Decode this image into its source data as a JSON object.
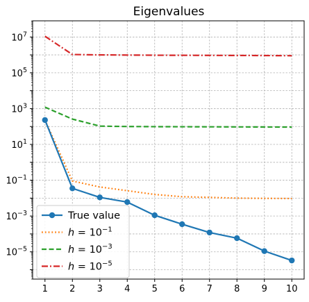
{
  "chart_data": {
    "type": "line",
    "title": "Eigenvalues",
    "xlabel": "",
    "ylabel": "",
    "x": [
      1,
      2,
      3,
      4,
      5,
      6,
      7,
      8,
      9,
      10
    ],
    "xlim": [
      0.55,
      10.45
    ],
    "ylim": [
      3e-07,
      80000000.0
    ],
    "yscale": "log",
    "grid": true,
    "legend_position": "lower-left",
    "x_ticks": [
      "1",
      "2",
      "3",
      "4",
      "5",
      "6",
      "7",
      "8",
      "9",
      "10"
    ],
    "y_ticks": [
      {
        "value": 1e-05,
        "base": "10",
        "exp": "−5"
      },
      {
        "value": 0.001,
        "base": "10",
        "exp": "−3"
      },
      {
        "value": 0.1,
        "base": "10",
        "exp": "−1"
      },
      {
        "value": 10,
        "base": "10",
        "exp": "1"
      },
      {
        "value": 1000,
        "base": "10",
        "exp": "3"
      },
      {
        "value": 100000,
        "base": "10",
        "exp": "5"
      },
      {
        "value": 10000000,
        "base": "10",
        "exp": "7"
      }
    ],
    "series": [
      {
        "name": "True value",
        "color": "#1f77b4",
        "style": "solid-marker",
        "values": [
          230,
          0.035,
          0.011,
          0.006,
          0.0011,
          0.00035,
          0.00012,
          5.8e-05,
          1.1e-05,
          3.3e-06
        ]
      },
      {
        "name_prefix": "h = 10",
        "name_exp": "−1",
        "color": "#ff7f0e",
        "style": "dotted",
        "values": [
          230,
          0.09,
          0.042,
          0.026,
          0.016,
          0.012,
          0.011,
          0.01,
          0.0097,
          0.0095
        ]
      },
      {
        "name_prefix": "h = 10",
        "name_exp": "−3",
        "color": "#2ca02c",
        "style": "dashed",
        "values": [
          1200,
          260,
          105,
          100,
          98,
          97,
          96,
          95,
          94,
          93
        ]
      },
      {
        "name_prefix": "h = 10",
        "name_exp": "−5",
        "color": "#d62728",
        "style": "dashdot",
        "values": [
          11000000,
          1050000,
          1000000,
          980000,
          960000,
          950000,
          940000,
          930000,
          920000,
          900000
        ]
      }
    ]
  }
}
